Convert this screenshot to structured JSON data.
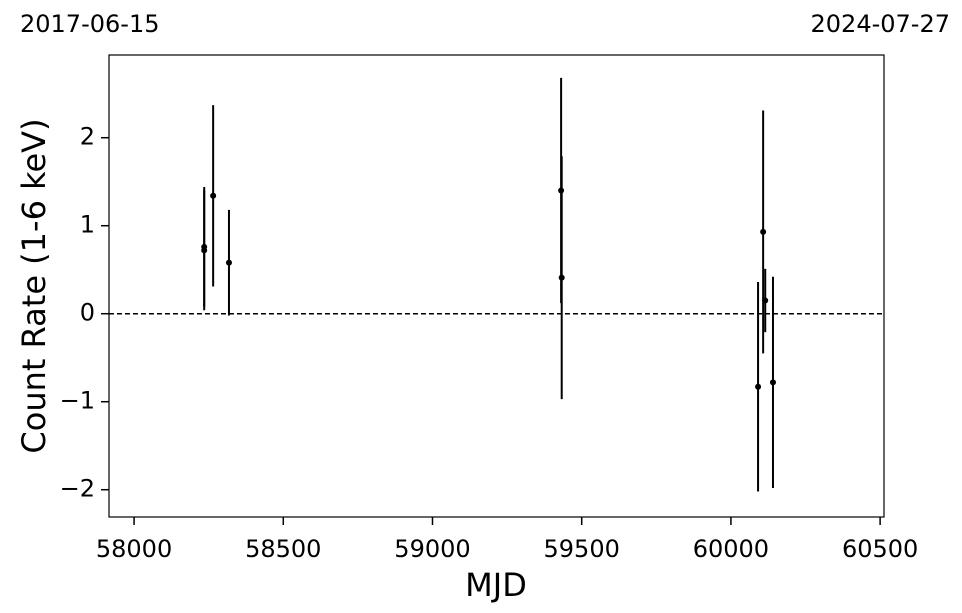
{
  "chart_data": {
    "type": "errorbar",
    "annotations": [
      "2017-06-15",
      "2024-07-27"
    ],
    "xlabel": "MJD",
    "ylabel": "Count Rate (1-6 keV)",
    "x": [
      58235,
      58235,
      58265,
      58318,
      59431,
      59433,
      60091,
      60108,
      60115,
      60141
    ],
    "values": [
      0.76,
      0.72,
      1.34,
      0.58,
      1.4,
      0.41,
      -0.83,
      0.93,
      0.15,
      -0.78
    ],
    "errors": [
      0.68,
      0.68,
      1.03,
      0.6,
      1.28,
      1.38,
      1.19,
      1.38,
      0.36,
      1.2
    ],
    "color": "#000000",
    "reference_line": 0,
    "xlim": [
      57916,
      60513
    ],
    "xticks": [
      58000,
      58500,
      59000,
      59500,
      60000,
      60500
    ],
    "ylim": [
      -2.31,
      2.94
    ],
    "yticks": [
      {
        "value": -2,
        "label": "−2"
      },
      {
        "value": -1,
        "label": "−1"
      },
      0,
      1,
      2
    ]
  }
}
